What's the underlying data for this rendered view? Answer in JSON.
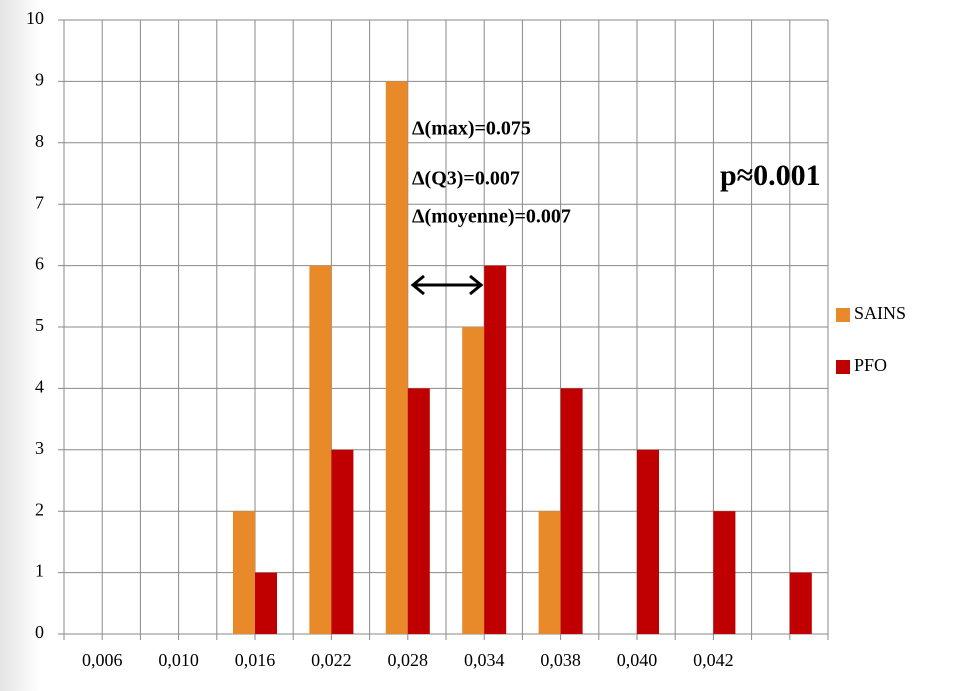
{
  "chart_data": {
    "type": "bar",
    "categories": [
      "0,006",
      "0,010",
      "0,016",
      "0,022",
      "0,028",
      "0,034",
      "0,038",
      "0,040",
      "0,042",
      null
    ],
    "series": [
      {
        "name": "SAINS",
        "color": "#e8892a",
        "values": [
          0,
          0,
          2,
          6,
          9,
          5,
          2,
          0,
          0,
          0
        ]
      },
      {
        "name": "PFO",
        "color": "#c00000",
        "values": [
          0,
          0,
          1,
          3,
          4,
          6,
          4,
          3,
          2,
          1
        ]
      }
    ],
    "ylim": [
      0,
      10
    ],
    "yticks": [
      0,
      1,
      2,
      3,
      4,
      5,
      6,
      7,
      8,
      9,
      10
    ],
    "grid": true,
    "legend": "right",
    "annotations": [
      "Δ(max)=0.075",
      "Δ(Q3)=0.007",
      "Δ(moyenne)=0.007",
      "p≈0.001"
    ],
    "annotation_color": "#e01010"
  }
}
